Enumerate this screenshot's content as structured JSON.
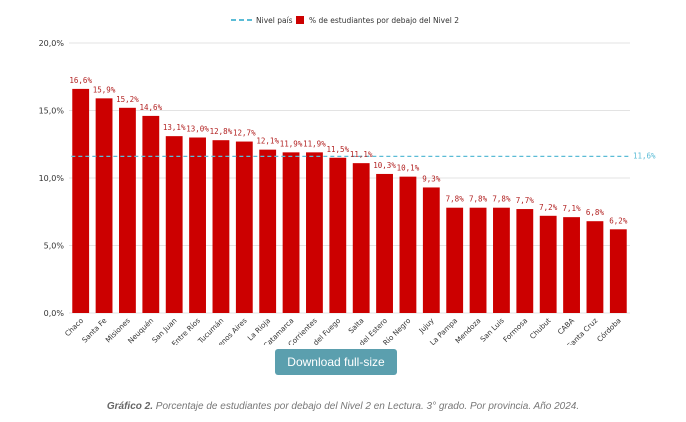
{
  "chart_data": {
    "type": "bar",
    "categories": [
      "Chaco",
      "Santa Fe",
      "Misiones",
      "Neuquén",
      "San Juan",
      "Entre Ríos",
      "Tucumán",
      "Buenos Aires",
      "La Rioja",
      "Catamarca",
      "Corrientes",
      "Tierra del Fuego",
      "Salta",
      "Santiago del Estero",
      "Río Negro",
      "Jujuy",
      "La Pampa",
      "Mendoza",
      "San Luis",
      "Formosa",
      "Chubut",
      "CABA",
      "Santa Cruz",
      "Córdoba"
    ],
    "series": [
      {
        "name": "% de estudiantes por debajo del Nivel 2",
        "color": "#cc0000",
        "values": [
          16.6,
          15.9,
          15.2,
          14.6,
          13.1,
          13.0,
          12.8,
          12.7,
          12.1,
          11.9,
          11.9,
          11.5,
          11.1,
          10.3,
          10.1,
          9.3,
          7.8,
          7.8,
          7.8,
          7.7,
          7.2,
          7.1,
          6.8,
          6.2
        ],
        "value_labels": [
          "16,6%",
          "15,9%",
          "15,2%",
          "14,6%",
          "13,1%",
          "13,0%",
          "12,8%",
          "12,7%",
          "12,1%",
          "11,9%",
          "11,9%",
          "11,5%",
          "11,1%",
          "10,3%",
          "10,1%",
          "9,3%",
          "7,8%",
          "7,8%",
          "7,8%",
          "7,7%",
          "7,2%",
          "7,1%",
          "6,8%",
          "6,2%"
        ]
      }
    ],
    "reference_line": {
      "name": "Nivel país",
      "value": 11.6,
      "label": "11,6%",
      "color": "#5bbcd6"
    },
    "ylim": [
      0,
      20
    ],
    "yticks": [
      0,
      5,
      10,
      15,
      20
    ],
    "ytick_labels": [
      "0,0%",
      "5,0%",
      "10,0%",
      "15,0%",
      "20,0%"
    ],
    "grid": true,
    "legend_position": "top-center",
    "title": "",
    "xlabel": "",
    "ylabel": ""
  },
  "download_button": {
    "label": "Download full-size"
  },
  "caption": {
    "prefix": "Gráfico 2.",
    "text": " Porcentaje de estudiantes por debajo del Nivel 2 en Lectura. 3° grado. Por provincia. Año 2024."
  }
}
